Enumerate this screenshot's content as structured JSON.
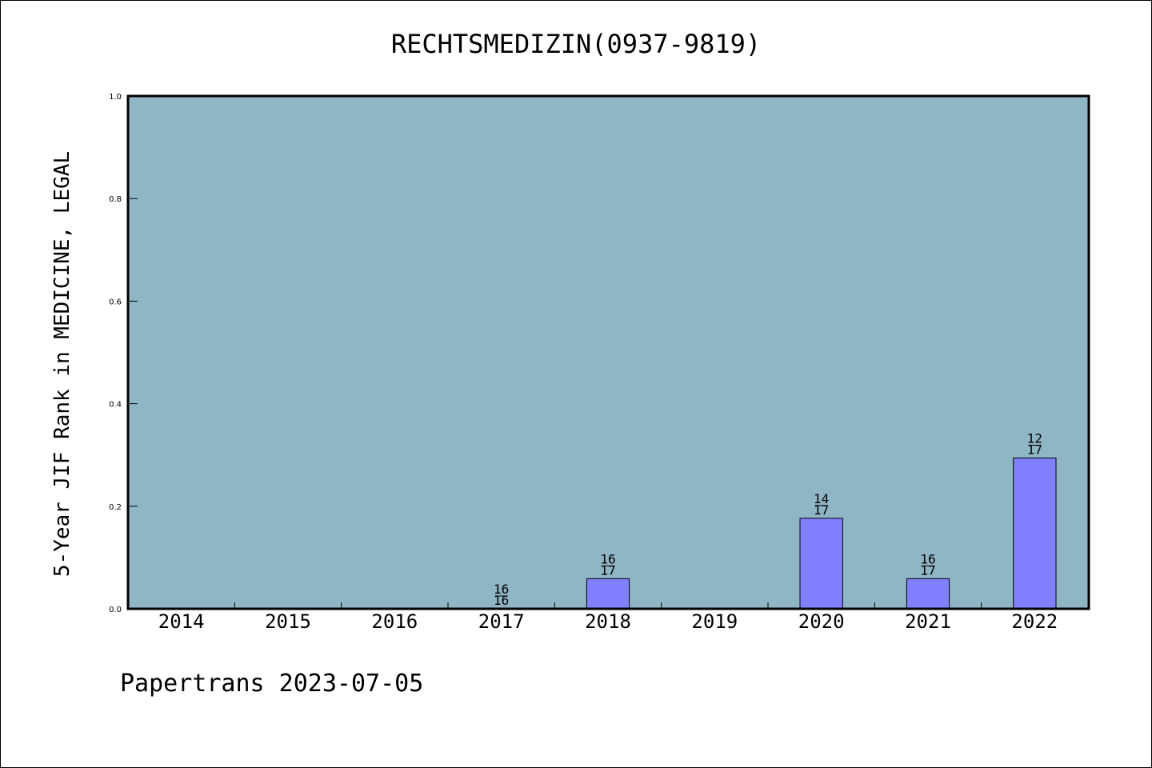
{
  "chart_data": {
    "type": "bar",
    "title": "RECHTSMEDIZIN(0937-9819)",
    "xlabel": "",
    "ylabel": "5-Year JIF Rank in MEDICINE, LEGAL",
    "ylim": [
      0.0,
      1.0
    ],
    "yticks": [
      "0.0",
      "0.2",
      "0.4",
      "0.6",
      "0.8",
      "1.0"
    ],
    "categories": [
      "2014",
      "2015",
      "2016",
      "2017",
      "2018",
      "2019",
      "2020",
      "2021",
      "2022"
    ],
    "values": [
      null,
      null,
      null,
      0.0,
      0.0588,
      null,
      0.1765,
      0.0588,
      0.2941
    ],
    "bar_labels": [
      null,
      null,
      null,
      {
        "top": "16",
        "bottom": "16"
      },
      {
        "top": "16",
        "bottom": "17"
      },
      null,
      {
        "top": "14",
        "bottom": "17"
      },
      {
        "top": "16",
        "bottom": "17"
      },
      {
        "top": "12",
        "bottom": "17"
      }
    ],
    "grid": false,
    "colors": {
      "plot_background": "#8fb6c5",
      "bar_fill": "#8080ff",
      "bar_edge": "#000000"
    }
  },
  "footer": {
    "text": "Papertrans 2023-07-05"
  }
}
